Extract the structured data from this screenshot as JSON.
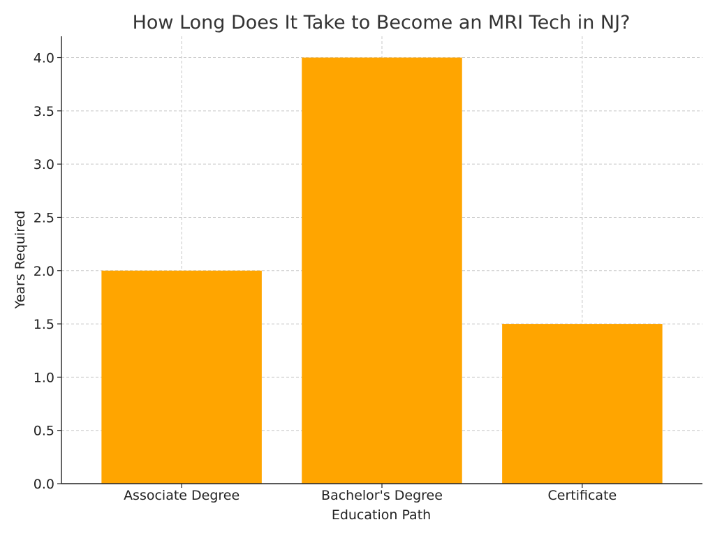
{
  "chart_data": {
    "type": "bar",
    "title": "How Long Does It Take to Become an MRI Tech in NJ?",
    "xlabel": "Education Path",
    "ylabel": "Years Required",
    "categories": [
      "Associate Degree",
      "Bachelor's Degree",
      "Certificate"
    ],
    "values": [
      2.0,
      4.0,
      1.5
    ],
    "ylim": [
      0,
      4.2
    ],
    "yticks": [
      "0.0",
      "0.5",
      "1.0",
      "1.5",
      "2.0",
      "2.5",
      "3.0",
      "3.5",
      "4.0"
    ],
    "grid": true,
    "bar_color": "#FFA500",
    "legend": "none"
  }
}
